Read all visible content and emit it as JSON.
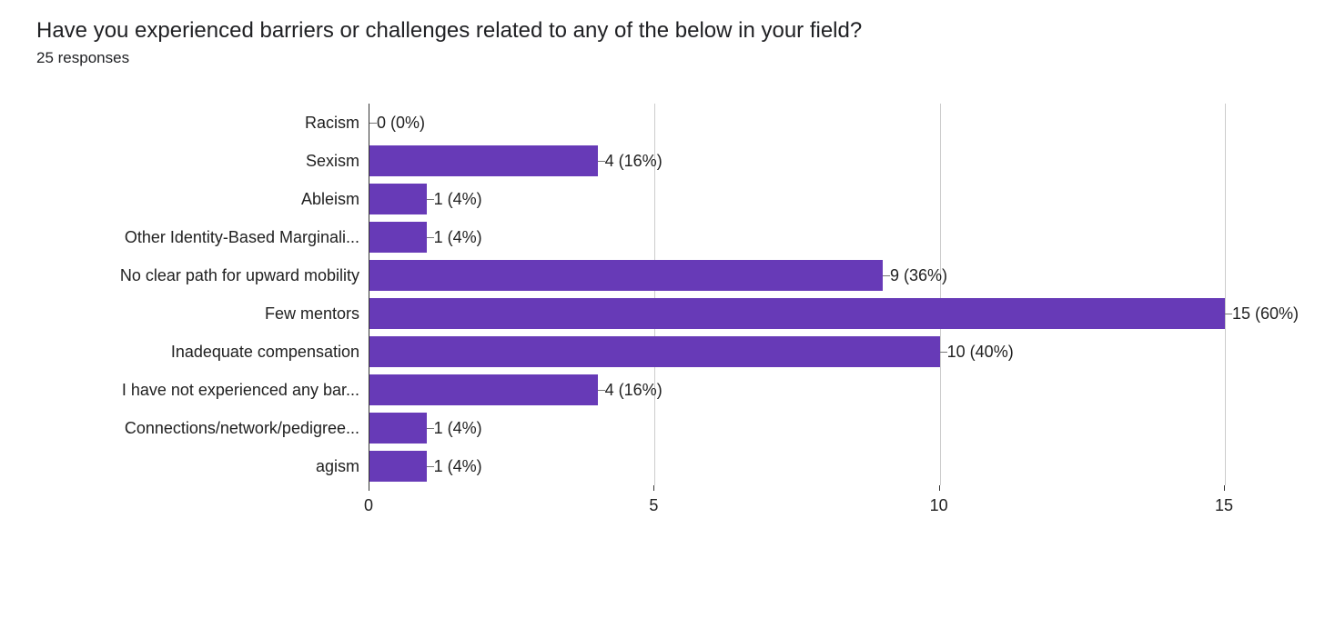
{
  "title": "Have you experienced barriers or challenges related to any of the below in your field?",
  "subtitle": "25 responses",
  "chart": {
    "type": "bar-horizontal",
    "xmin": 0,
    "xmax": 15,
    "x_ticks": [
      0,
      5,
      10,
      15
    ],
    "bar_color": "#673ab7",
    "grid_color": "#cccccc",
    "axis_color": "#333333",
    "tick_color": "#757575",
    "background_color": "#ffffff",
    "text_color": "#212121",
    "title_fontsize": 24,
    "label_fontsize": 18,
    "categories": [
      {
        "label": "Racism",
        "value": 0,
        "value_label": "0 (0%)"
      },
      {
        "label": "Sexism",
        "value": 4,
        "value_label": "4 (16%)"
      },
      {
        "label": "Ableism",
        "value": 1,
        "value_label": "1 (4%)"
      },
      {
        "label": "Other Identity-Based Marginali...",
        "value": 1,
        "value_label": "1 (4%)"
      },
      {
        "label": "No clear path for upward mobility",
        "value": 9,
        "value_label": "9 (36%)"
      },
      {
        "label": "Few mentors",
        "value": 15,
        "value_label": "15 (60%)"
      },
      {
        "label": "Inadequate compensation",
        "value": 10,
        "value_label": "10 (40%)"
      },
      {
        "label": "I have not experienced any bar...",
        "value": 4,
        "value_label": "4 (16%)"
      },
      {
        "label": "Connections/network/pedigree...",
        "value": 1,
        "value_label": "1 (4%)"
      },
      {
        "label": "agism",
        "value": 1,
        "value_label": "1 (4%)"
      }
    ]
  }
}
